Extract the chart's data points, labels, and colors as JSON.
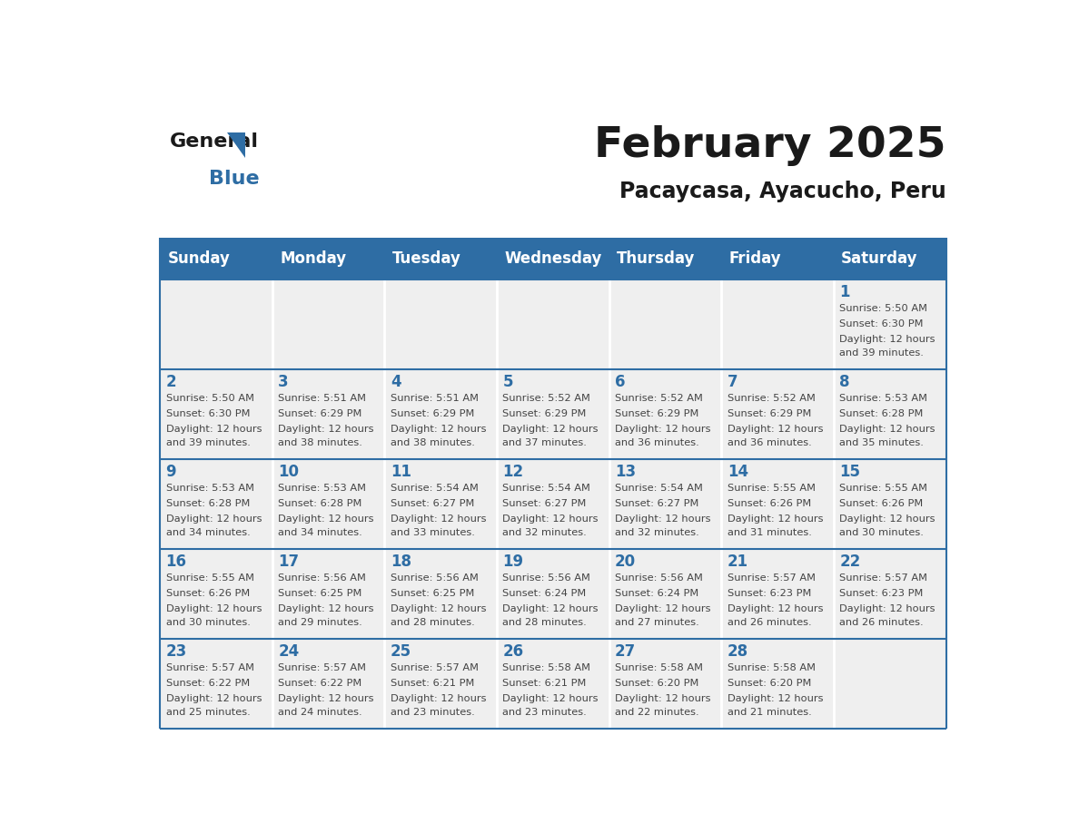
{
  "title": "February 2025",
  "subtitle": "Pacaycasa, Ayacucho, Peru",
  "header_bg": "#2E6DA4",
  "header_text": "#FFFFFF",
  "cell_bg_light": "#EFEFEF",
  "text_color": "#444444",
  "day_number_color": "#2E6DA4",
  "days_of_week": [
    "Sunday",
    "Monday",
    "Tuesday",
    "Wednesday",
    "Thursday",
    "Friday",
    "Saturday"
  ],
  "weeks": [
    [
      {
        "day": "",
        "sunrise": "",
        "sunset": "",
        "daylight": ""
      },
      {
        "day": "",
        "sunrise": "",
        "sunset": "",
        "daylight": ""
      },
      {
        "day": "",
        "sunrise": "",
        "sunset": "",
        "daylight": ""
      },
      {
        "day": "",
        "sunrise": "",
        "sunset": "",
        "daylight": ""
      },
      {
        "day": "",
        "sunrise": "",
        "sunset": "",
        "daylight": ""
      },
      {
        "day": "",
        "sunrise": "",
        "sunset": "",
        "daylight": ""
      },
      {
        "day": "1",
        "sunrise": "5:50 AM",
        "sunset": "6:30 PM",
        "daylight_minutes": "39"
      }
    ],
    [
      {
        "day": "2",
        "sunrise": "5:50 AM",
        "sunset": "6:30 PM",
        "daylight_minutes": "39"
      },
      {
        "day": "3",
        "sunrise": "5:51 AM",
        "sunset": "6:29 PM",
        "daylight_minutes": "38"
      },
      {
        "day": "4",
        "sunrise": "5:51 AM",
        "sunset": "6:29 PM",
        "daylight_minutes": "38"
      },
      {
        "day": "5",
        "sunrise": "5:52 AM",
        "sunset": "6:29 PM",
        "daylight_minutes": "37"
      },
      {
        "day": "6",
        "sunrise": "5:52 AM",
        "sunset": "6:29 PM",
        "daylight_minutes": "36"
      },
      {
        "day": "7",
        "sunrise": "5:52 AM",
        "sunset": "6:29 PM",
        "daylight_minutes": "36"
      },
      {
        "day": "8",
        "sunrise": "5:53 AM",
        "sunset": "6:28 PM",
        "daylight_minutes": "35"
      }
    ],
    [
      {
        "day": "9",
        "sunrise": "5:53 AM",
        "sunset": "6:28 PM",
        "daylight_minutes": "34"
      },
      {
        "day": "10",
        "sunrise": "5:53 AM",
        "sunset": "6:28 PM",
        "daylight_minutes": "34"
      },
      {
        "day": "11",
        "sunrise": "5:54 AM",
        "sunset": "6:27 PM",
        "daylight_minutes": "33"
      },
      {
        "day": "12",
        "sunrise": "5:54 AM",
        "sunset": "6:27 PM",
        "daylight_minutes": "32"
      },
      {
        "day": "13",
        "sunrise": "5:54 AM",
        "sunset": "6:27 PM",
        "daylight_minutes": "32"
      },
      {
        "day": "14",
        "sunrise": "5:55 AM",
        "sunset": "6:26 PM",
        "daylight_minutes": "31"
      },
      {
        "day": "15",
        "sunrise": "5:55 AM",
        "sunset": "6:26 PM",
        "daylight_minutes": "30"
      }
    ],
    [
      {
        "day": "16",
        "sunrise": "5:55 AM",
        "sunset": "6:26 PM",
        "daylight_minutes": "30"
      },
      {
        "day": "17",
        "sunrise": "5:56 AM",
        "sunset": "6:25 PM",
        "daylight_minutes": "29"
      },
      {
        "day": "18",
        "sunrise": "5:56 AM",
        "sunset": "6:25 PM",
        "daylight_minutes": "28"
      },
      {
        "day": "19",
        "sunrise": "5:56 AM",
        "sunset": "6:24 PM",
        "daylight_minutes": "28"
      },
      {
        "day": "20",
        "sunrise": "5:56 AM",
        "sunset": "6:24 PM",
        "daylight_minutes": "27"
      },
      {
        "day": "21",
        "sunrise": "5:57 AM",
        "sunset": "6:23 PM",
        "daylight_minutes": "26"
      },
      {
        "day": "22",
        "sunrise": "5:57 AM",
        "sunset": "6:23 PM",
        "daylight_minutes": "26"
      }
    ],
    [
      {
        "day": "23",
        "sunrise": "5:57 AM",
        "sunset": "6:22 PM",
        "daylight_minutes": "25"
      },
      {
        "day": "24",
        "sunrise": "5:57 AM",
        "sunset": "6:22 PM",
        "daylight_minutes": "24"
      },
      {
        "day": "25",
        "sunrise": "5:57 AM",
        "sunset": "6:21 PM",
        "daylight_minutes": "23"
      },
      {
        "day": "26",
        "sunrise": "5:58 AM",
        "sunset": "6:21 PM",
        "daylight_minutes": "23"
      },
      {
        "day": "27",
        "sunrise": "5:58 AM",
        "sunset": "6:20 PM",
        "daylight_minutes": "22"
      },
      {
        "day": "28",
        "sunrise": "5:58 AM",
        "sunset": "6:20 PM",
        "daylight_minutes": "21"
      },
      {
        "day": "",
        "sunrise": "",
        "sunset": "",
        "daylight_minutes": ""
      }
    ]
  ]
}
